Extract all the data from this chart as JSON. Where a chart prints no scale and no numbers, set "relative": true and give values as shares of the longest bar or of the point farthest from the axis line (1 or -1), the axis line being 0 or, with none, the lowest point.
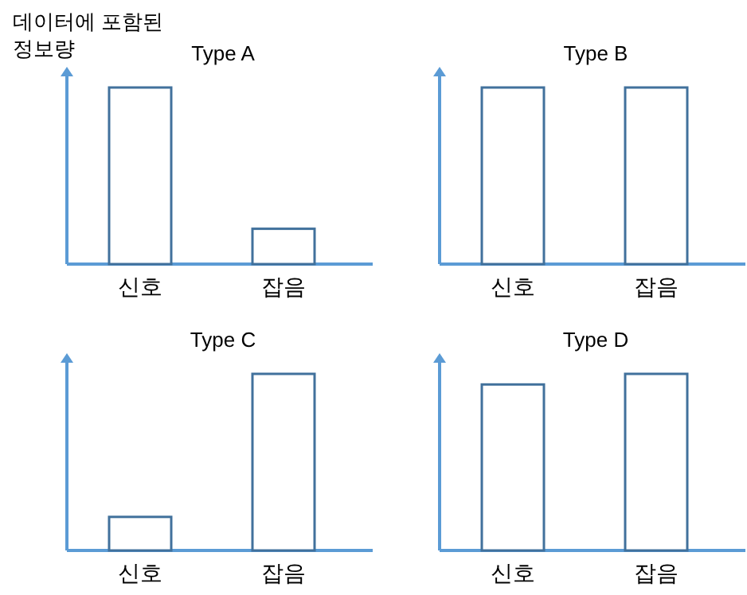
{
  "chart_data": [
    {
      "type": "bar",
      "title": "Type A",
      "ylabel": "데이터에 포함된\n정보량",
      "relative": true,
      "categories": [
        "신호",
        "잡음"
      ],
      "series": [
        {
          "color": "#41719c",
          "values": [
            1,
            0.2
          ]
        }
      ]
    },
    {
      "type": "bar",
      "title": "Type B",
      "relative": true,
      "categories": [
        "신호",
        "잡음"
      ],
      "series": [
        {
          "color": "#41719c",
          "values": [
            1,
            1
          ]
        }
      ]
    },
    {
      "type": "bar",
      "title": "Type C",
      "relative": true,
      "categories": [
        "신호",
        "잡음"
      ],
      "series": [
        {
          "color": "#41719c",
          "values": [
            0.19,
            1
          ]
        }
      ]
    },
    {
      "type": "bar",
      "title": "Type D",
      "relative": true,
      "categories": [
        "신호",
        "잡음"
      ],
      "series": [
        {
          "color": "#41719c",
          "values": [
            0.94,
            1
          ]
        }
      ]
    }
  ]
}
